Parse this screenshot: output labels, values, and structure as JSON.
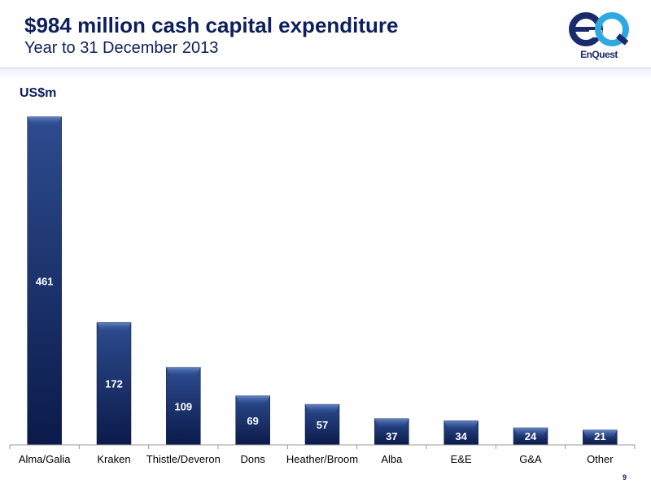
{
  "header": {
    "title": "$984 million cash capital expenditure",
    "subtitle": "Year to 31 December 2013"
  },
  "logo": {
    "icon": "enquest-eq-logo",
    "text": "EnQuest",
    "colors": {
      "dark": "#1b2a6b",
      "accent": "#2fa8e0"
    }
  },
  "footer": {
    "page_number": "9"
  },
  "colors": {
    "bar_top": "#2d4c8f",
    "bar_bottom": "#0b1a4a",
    "title": "#0d1f5c"
  },
  "chart_data": {
    "type": "bar",
    "title": "",
    "xlabel": "",
    "ylabel": "US$m",
    "categories": [
      "Alma/Galia",
      "Kraken",
      "Thistle/Deveron",
      "Dons",
      "Heather/Broom",
      "Alba",
      "E&E",
      "G&A",
      "Other"
    ],
    "values": [
      461,
      172,
      109,
      69,
      57,
      37,
      34,
      24,
      21
    ],
    "ylim": [
      0,
      465
    ],
    "grid": false,
    "legend": "none"
  }
}
